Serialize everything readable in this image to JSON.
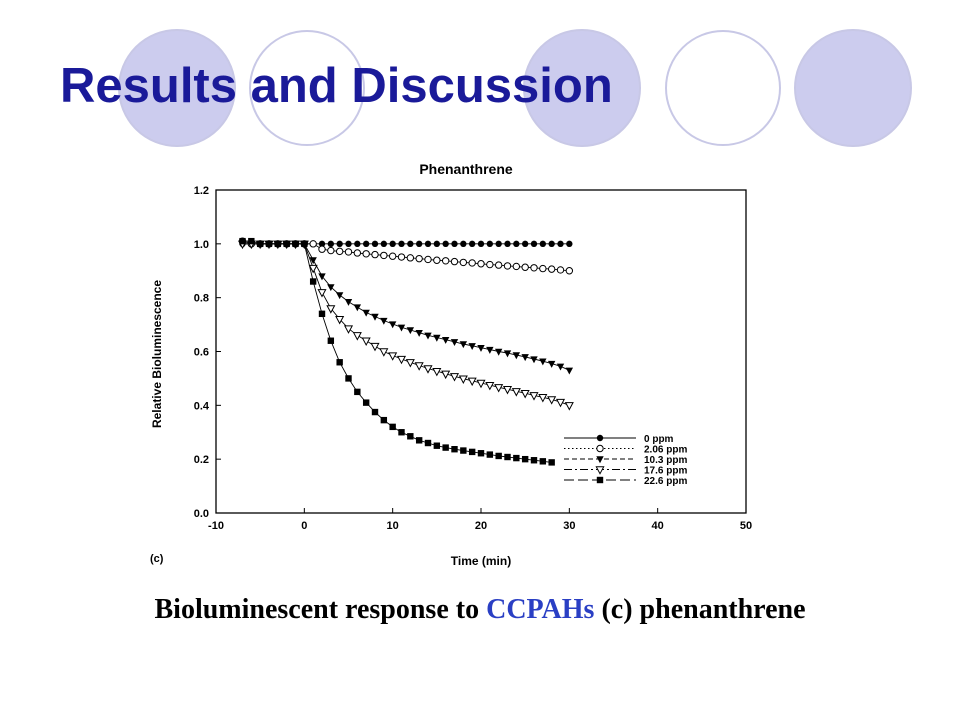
{
  "slide": {
    "title": "Results and Discussion",
    "caption_before": "Bioluminescent  response to ",
    "caption_highlight": "CCPAHs",
    "caption_after": " (c) phenanthrene",
    "title_color": "#1a1a99",
    "highlight_color": "#2a3fc4",
    "circle_fill": "#ccccee",
    "circle_stroke": "#c8c8e6"
  },
  "chart_data": {
    "type": "scatter",
    "title": "Phenanthrene",
    "panel_label": "(c)",
    "xlabel": "Time (min)",
    "ylabel": "Relative Bioluminescence",
    "xlim": [
      -10,
      50
    ],
    "ylim": [
      0.0,
      1.2
    ],
    "xticks": [
      "-10",
      "0",
      "10",
      "20",
      "30",
      "40",
      "50"
    ],
    "yticks": [
      "0.0",
      "0.2",
      "0.4",
      "0.6",
      "0.8",
      "1.0",
      "1.2"
    ],
    "grid": false,
    "legend_position": "bottom-right",
    "series": [
      {
        "name": "0 ppm",
        "marker": "filled-circle",
        "line": "solid",
        "x": [
          -7,
          -6,
          -5,
          -4,
          -3,
          -2,
          -1,
          0,
          1,
          2,
          3,
          4,
          5,
          6,
          7,
          8,
          9,
          10,
          11,
          12,
          13,
          14,
          15,
          16,
          17,
          18,
          19,
          20,
          21,
          22,
          23,
          24,
          25,
          26,
          27,
          28,
          29,
          30
        ],
        "y": [
          1.0,
          1.0,
          1.0,
          1.0,
          1.0,
          1.0,
          1.0,
          1.0,
          1.0,
          1.0,
          1.0,
          1.0,
          1.0,
          1.0,
          1.0,
          1.0,
          1.0,
          1.0,
          1.0,
          1.0,
          1.0,
          1.0,
          1.0,
          1.0,
          1.0,
          1.0,
          1.0,
          1.0,
          1.0,
          1.0,
          1.0,
          1.0,
          1.0,
          1.0,
          1.0,
          1.0,
          1.0,
          1.0
        ]
      },
      {
        "name": "2.06 ppm",
        "marker": "open-circle",
        "line": "dotted",
        "x": [
          -7,
          -6,
          -5,
          -4,
          -3,
          -2,
          -1,
          0,
          1,
          2,
          3,
          4,
          5,
          6,
          7,
          8,
          9,
          10,
          11,
          12,
          13,
          14,
          15,
          16,
          17,
          18,
          19,
          20,
          21,
          22,
          23,
          24,
          25,
          26,
          27,
          28,
          29,
          30
        ],
        "y": [
          1.01,
          1.0,
          1.0,
          1.0,
          1.0,
          1.0,
          1.0,
          1.0,
          1.0,
          0.98,
          0.975,
          0.972,
          0.97,
          0.966,
          0.963,
          0.96,
          0.957,
          0.954,
          0.951,
          0.948,
          0.945,
          0.942,
          0.939,
          0.937,
          0.934,
          0.931,
          0.929,
          0.926,
          0.923,
          0.921,
          0.918,
          0.916,
          0.913,
          0.911,
          0.908,
          0.906,
          0.903,
          0.9
        ]
      },
      {
        "name": "10.3 ppm",
        "marker": "filled-triangle-down",
        "line": "short-dash",
        "x": [
          -7,
          -6,
          -5,
          -4,
          -3,
          -2,
          -1,
          0,
          1,
          2,
          3,
          4,
          5,
          6,
          7,
          8,
          9,
          10,
          11,
          12,
          13,
          14,
          15,
          16,
          17,
          18,
          19,
          20,
          21,
          22,
          23,
          24,
          25,
          26,
          27,
          28,
          29,
          30
        ],
        "y": [
          1.0,
          1.0,
          1.0,
          1.0,
          1.0,
          1.0,
          1.0,
          1.0,
          0.94,
          0.88,
          0.84,
          0.81,
          0.785,
          0.765,
          0.745,
          0.73,
          0.715,
          0.702,
          0.69,
          0.68,
          0.67,
          0.66,
          0.652,
          0.644,
          0.636,
          0.628,
          0.621,
          0.614,
          0.607,
          0.6,
          0.594,
          0.587,
          0.58,
          0.572,
          0.564,
          0.555,
          0.545,
          0.53
        ]
      },
      {
        "name": "17.6 ppm",
        "marker": "open-triangle-down",
        "line": "dash-dot",
        "x": [
          -7,
          -6,
          -5,
          -4,
          -3,
          -2,
          -1,
          0,
          1,
          2,
          3,
          4,
          5,
          6,
          7,
          8,
          9,
          10,
          11,
          12,
          13,
          14,
          15,
          16,
          17,
          18,
          19,
          20,
          21,
          22,
          23,
          24,
          25,
          26,
          27,
          28,
          29,
          30
        ],
        "y": [
          1.0,
          1.0,
          1.0,
          1.0,
          1.0,
          1.0,
          1.0,
          1.0,
          0.91,
          0.82,
          0.76,
          0.72,
          0.685,
          0.66,
          0.64,
          0.62,
          0.6,
          0.585,
          0.572,
          0.56,
          0.548,
          0.537,
          0.527,
          0.517,
          0.508,
          0.499,
          0.491,
          0.483,
          0.475,
          0.467,
          0.46,
          0.452,
          0.445,
          0.437,
          0.43,
          0.422,
          0.412,
          0.4
        ]
      },
      {
        "name": "22.6 ppm",
        "marker": "filled-square",
        "line": "long-dash",
        "x": [
          -7,
          -6,
          -5,
          -4,
          -3,
          -2,
          -1,
          0,
          1,
          2,
          3,
          4,
          5,
          6,
          7,
          8,
          9,
          10,
          11,
          12,
          13,
          14,
          15,
          16,
          17,
          18,
          19,
          20,
          21,
          22,
          23,
          24,
          25,
          26,
          27,
          28
        ],
        "y": [
          1.01,
          1.01,
          1.0,
          1.0,
          1.0,
          1.0,
          1.0,
          1.0,
          0.86,
          0.74,
          0.64,
          0.56,
          0.5,
          0.45,
          0.41,
          0.375,
          0.345,
          0.32,
          0.3,
          0.285,
          0.27,
          0.26,
          0.25,
          0.243,
          0.237,
          0.232,
          0.227,
          0.222,
          0.217,
          0.212,
          0.208,
          0.204,
          0.2,
          0.196,
          0.192,
          0.188
        ]
      }
    ]
  }
}
